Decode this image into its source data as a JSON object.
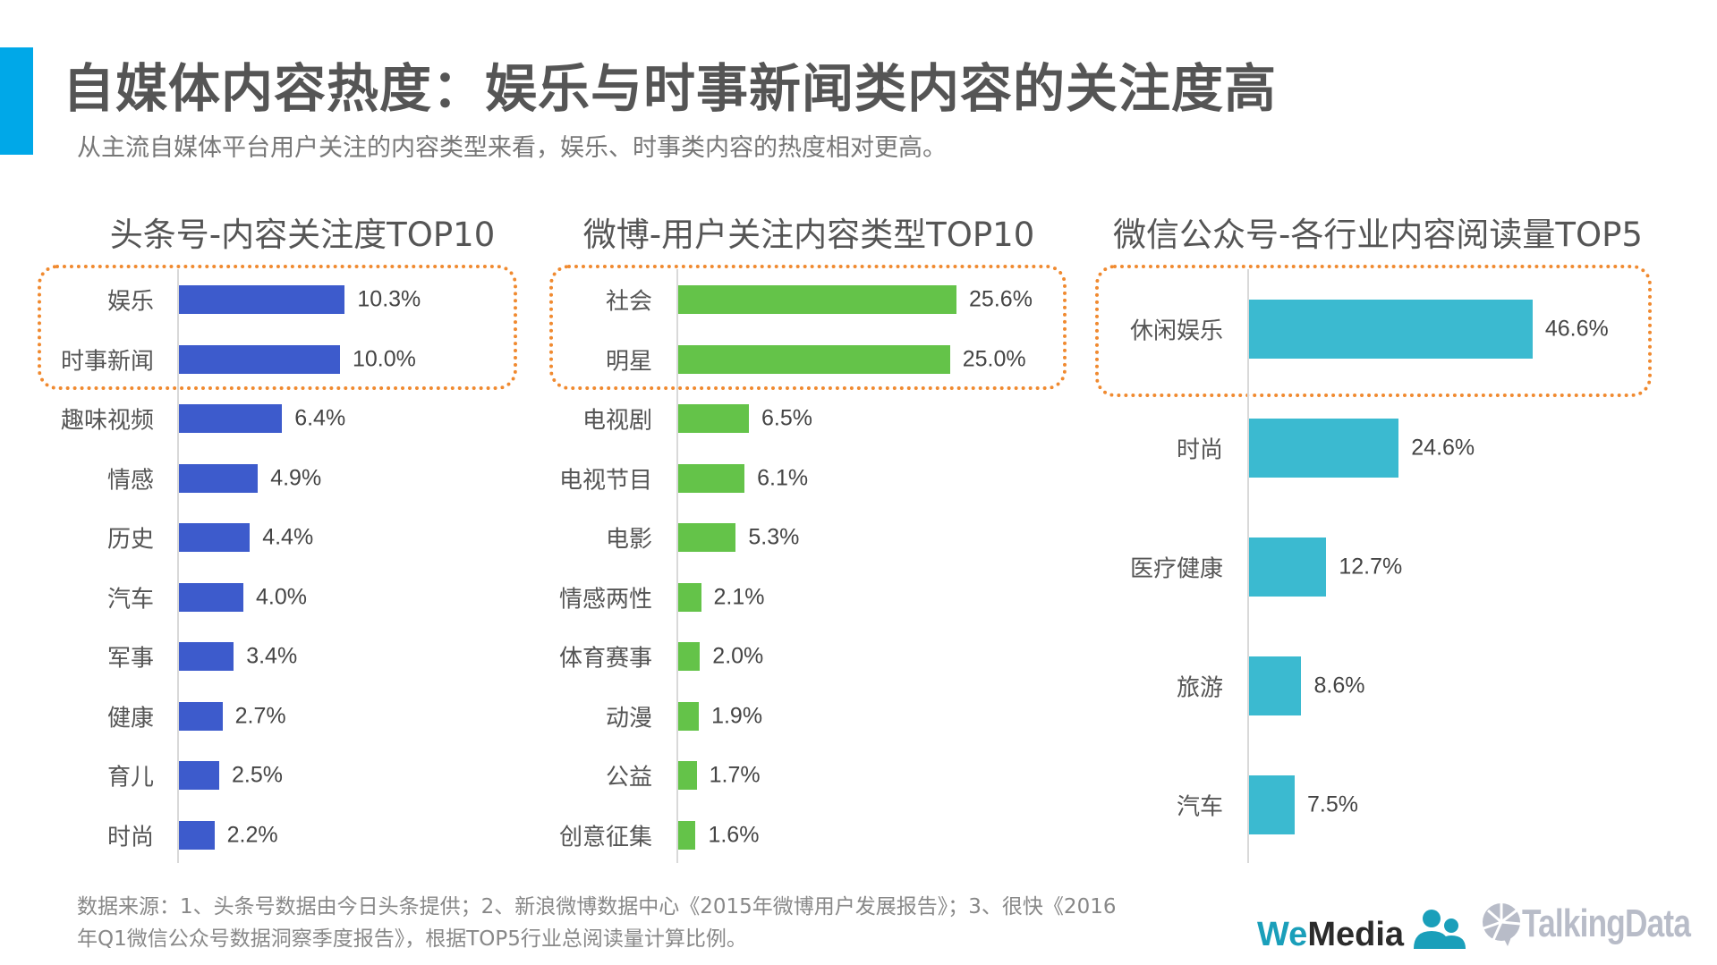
{
  "header": {
    "title": "自媒体内容热度：娱乐与时事新闻类内容的关注度高",
    "subtitle": "从主流自媒体平台用户关注的内容类型来看，娱乐、时事类内容的热度相对更高。",
    "accent_color": "#00a8e8"
  },
  "chart_data": [
    {
      "type": "bar",
      "orientation": "horizontal",
      "title": "头条号-内容关注度TOP10",
      "categories": [
        "娱乐",
        "时事新闻",
        "趣味视频",
        "情感",
        "历史",
        "汽车",
        "军事",
        "健康",
        "育儿",
        "时尚"
      ],
      "values": [
        10.3,
        10.0,
        6.4,
        4.9,
        4.4,
        4.0,
        3.4,
        2.7,
        2.5,
        2.2
      ],
      "labels": [
        "10.3%",
        "10.0%",
        "6.4%",
        "4.9%",
        "4.4%",
        "4.0%",
        "3.4%",
        "2.7%",
        "2.5%",
        "2.2%"
      ],
      "unit": "%",
      "highlighted": [
        "娱乐",
        "时事新闻"
      ],
      "color": "#3d5bcc"
    },
    {
      "type": "bar",
      "orientation": "horizontal",
      "title": "微博-用户关注内容类型TOP10",
      "categories": [
        "社会",
        "明星",
        "电视剧",
        "电视节目",
        "电影",
        "情感两性",
        "体育赛事",
        "动漫",
        "公益",
        "创意征集"
      ],
      "values": [
        25.6,
        25.0,
        6.5,
        6.1,
        5.3,
        2.1,
        2.0,
        1.9,
        1.7,
        1.6
      ],
      "labels": [
        "25.6%",
        "25.0%",
        "6.5%",
        "6.1%",
        "5.3%",
        "2.1%",
        "2.0%",
        "1.9%",
        "1.7%",
        "1.6%"
      ],
      "unit": "%",
      "highlighted": [
        "社会",
        "明星"
      ],
      "color": "#64c349"
    },
    {
      "type": "bar",
      "orientation": "horizontal",
      "title": "微信公众号-各行业内容阅读量TOP5",
      "categories": [
        "休闲娱乐",
        "时尚",
        "医疗健康",
        "旅游",
        "汽车"
      ],
      "values": [
        46.6,
        24.6,
        12.7,
        8.6,
        7.5
      ],
      "labels": [
        "46.6%",
        "24.6%",
        "12.7%",
        "8.6%",
        "7.5%"
      ],
      "unit": "%",
      "highlighted": [
        "休闲娱乐"
      ],
      "color": "#3bbad0"
    }
  ],
  "highlight_color": "#f08a30",
  "footer": {
    "line1": "数据来源：1、头条号数据由今日头条提供；2、新浪微博数据中心《2015年微博用户发展报告》；3、很快《2016",
    "line2": "年Q1微信公众号数据洞察季度报告》，根据TOP5行业总阅读量计算比例。"
  },
  "logos": {
    "wemedia_we": "We",
    "wemedia_media": "Media",
    "talkingdata": "TalkingData"
  }
}
